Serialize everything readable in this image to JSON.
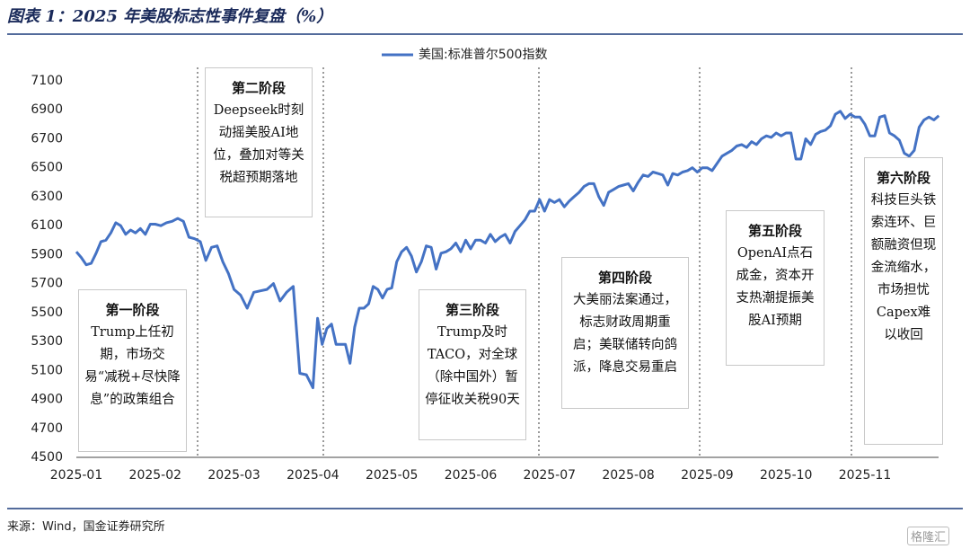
{
  "chart_data": {
    "type": "line",
    "title": "图表 1：2025 年美股标志性事件复盘（%）",
    "x": [
      "2025-01",
      "2025-02",
      "2025-03",
      "2025-04",
      "2025-05",
      "2025-06",
      "2025-07",
      "2025-08",
      "2025-09",
      "2025-10",
      "2025-11"
    ],
    "series": [
      {
        "name": "美国:标准普尔500指数",
        "color": "#4472c4",
        "values": [
          [
            5920,
            5880,
            5830,
            5840,
            5910,
            5990,
            6000,
            6050,
            6120,
            6100,
            6040,
            6070,
            6050,
            6080,
            6040,
            6110
          ],
          [
            6110,
            6100,
            6120,
            6130,
            6150,
            6130,
            6020,
            6010,
            5990,
            5860,
            5950,
            5960,
            5850,
            5770
          ],
          [
            5660,
            5620,
            5530,
            5640,
            5650,
            5660,
            5700,
            5580,
            5640,
            5680,
            5080,
            5070
          ],
          [
            4980,
            5460,
            5280,
            5390,
            5420,
            5280,
            5280,
            5280,
            5150,
            5400,
            5530,
            5530,
            5560,
            5680,
            5660,
            5600,
            5660
          ],
          [
            5670,
            5850,
            5920,
            5950,
            5890,
            5780,
            5850,
            5960,
            5950,
            5800,
            5910,
            5920,
            5940,
            5980,
            5920,
            6000
          ],
          [
            5940,
            6000,
            6000,
            5980,
            6040,
            5990,
            6020,
            6040,
            5980,
            6060,
            6100,
            6140,
            6200,
            6200,
            6280,
            6200
          ],
          [
            6280,
            6260,
            6280,
            6230,
            6270,
            6300,
            6330,
            6370,
            6390,
            6390,
            6300,
            6240,
            6330,
            6350,
            6370,
            6380
          ],
          [
            6390,
            6340,
            6400,
            6450,
            6440,
            6470,
            6460,
            6450,
            6380,
            6460,
            6450,
            6470,
            6480,
            6500,
            6470,
            6500
          ],
          [
            6500,
            6480,
            6530,
            6580,
            6600,
            6620,
            6650,
            6660,
            6640,
            6680,
            6660,
            6700,
            6720,
            6710,
            6740,
            6720
          ],
          [
            6740,
            6740,
            6560,
            6560,
            6700,
            6660,
            6730,
            6750,
            6760,
            6790,
            6870,
            6890,
            6840,
            6870,
            6850,
            6850
          ],
          [
            6800,
            6720,
            6720,
            6850,
            6860,
            6740,
            6720,
            6690,
            6600,
            6580,
            6620,
            6780,
            6830,
            6850,
            6830,
            6860
          ]
        ]
      }
    ],
    "ylim": [
      4500,
      7100
    ],
    "yticks": [
      4500,
      4700,
      4900,
      5100,
      5300,
      5500,
      5700,
      5900,
      6100,
      6300,
      6500,
      6700,
      6900,
      7100
    ],
    "legend": "top",
    "annotations": [
      {
        "title": "第一阶段",
        "text": "Trump上任初期，市场交易“减税+尽快降息”的政策组合"
      },
      {
        "title": "第二阶段",
        "text": "Deepseek时刻动摇美股AI地位，叠加对等关税超预期落地"
      },
      {
        "title": "第三阶段",
        "text": "Trump及时TACO，对全球（除中国外）暂停征收关税90天"
      },
      {
        "title": "第四阶段",
        "text": "大美丽法案通过，标志财政周期重启；美联储转向鸽派，降息交易重启"
      },
      {
        "title": "第五阶段",
        "text": "OpenAI点石成金，资本开支热潮提振美股AI预期"
      },
      {
        "title": "第六阶段",
        "text": "科技巨头铁索连环、巨额融资但现金流缩水，市场担忧Capex难以收回"
      }
    ]
  },
  "source": "来源：Wind，国金证券研究所",
  "watermark": "格隆汇"
}
